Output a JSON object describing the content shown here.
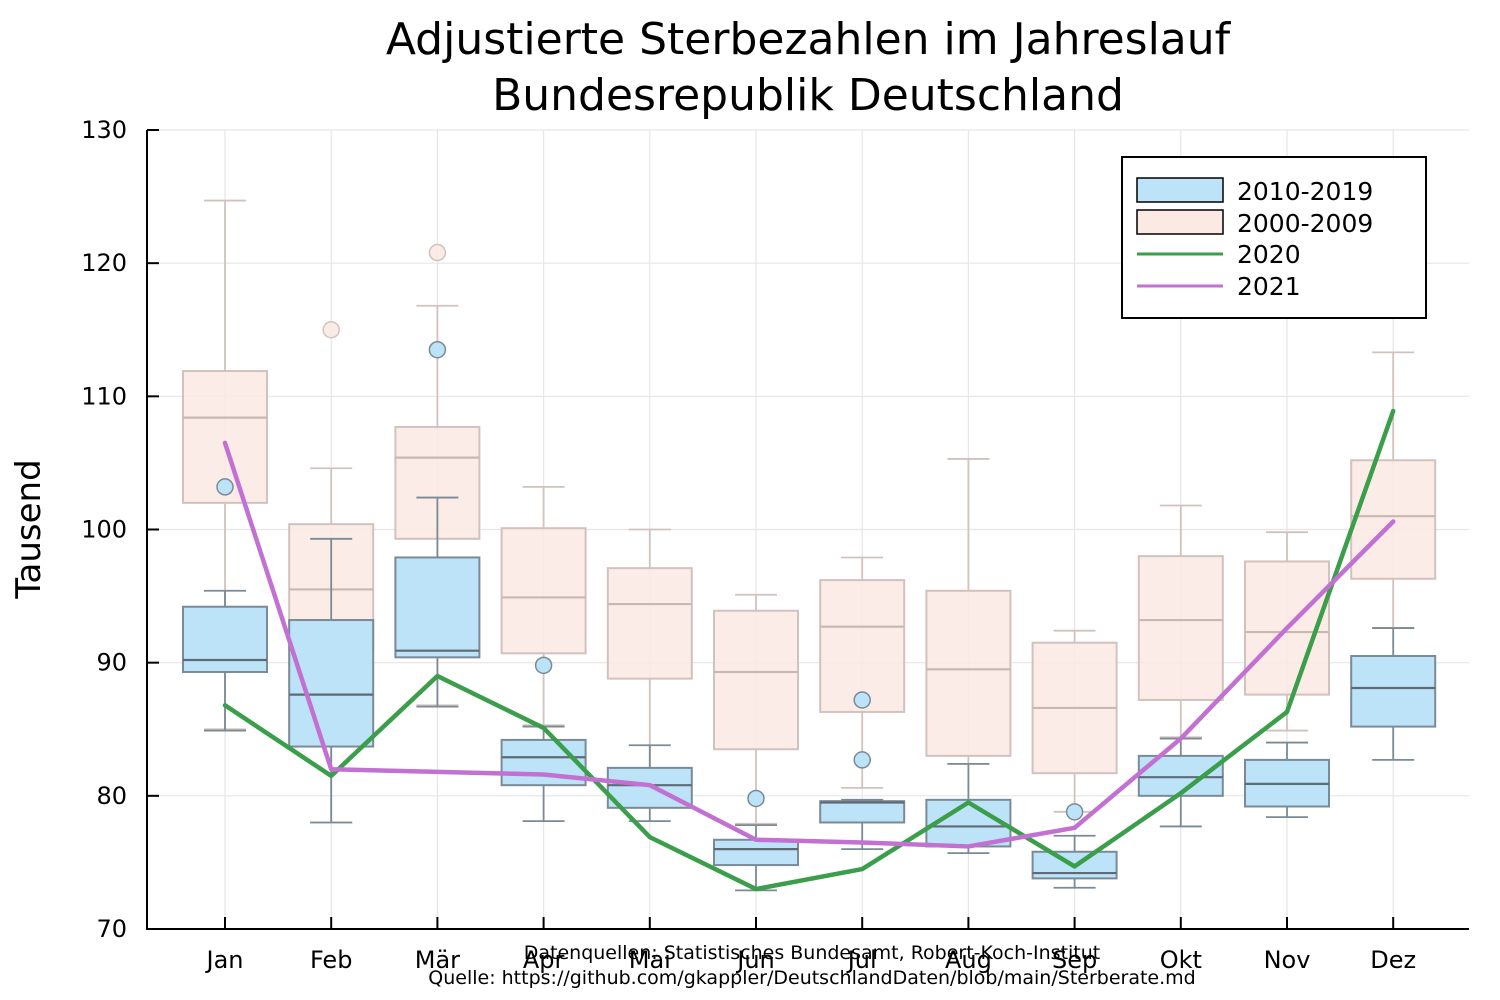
{
  "chart_data": {
    "type": "box+line",
    "title": "Adjustierte Sterbezahlen im Jahreslauf",
    "subtitle": "Bundesrepublik Deutschland",
    "ylabel": "Tausend",
    "xlabel": "",
    "ylim": [
      70,
      130
    ],
    "yticks": [
      "70",
      "80",
      "90",
      "100",
      "110",
      "120",
      "130"
    ],
    "categories": [
      "Jan",
      "Feb",
      "Mär",
      "Apr",
      "Mai",
      "Jun",
      "Jul",
      "Aug",
      "Sep",
      "Okt",
      "Nov",
      "Dez"
    ],
    "grid": true,
    "legend_position": "top-right",
    "box_series": [
      {
        "name": "2000-2009",
        "color": "#fbe9e3",
        "boxes": [
          {
            "low": 85.0,
            "q1": 102.0,
            "median": 108.4,
            "q3": 111.9,
            "high": 124.7,
            "outliers": []
          },
          {
            "low": 78.0,
            "q1": 91.0,
            "median": 95.5,
            "q3": 100.4,
            "high": 104.6,
            "outliers": [
              115.0
            ]
          },
          {
            "low": 86.8,
            "q1": 99.3,
            "median": 105.4,
            "q3": 107.7,
            "high": 116.8,
            "outliers": [
              120.8
            ]
          },
          {
            "low": 85.3,
            "q1": 90.7,
            "median": 94.9,
            "q3": 100.1,
            "high": 103.2,
            "outliers": []
          },
          {
            "low": 81.5,
            "q1": 88.8,
            "median": 94.4,
            "q3": 97.1,
            "high": 100.0,
            "outliers": []
          },
          {
            "low": 77.9,
            "q1": 83.5,
            "median": 89.3,
            "q3": 93.9,
            "high": 95.1,
            "outliers": []
          },
          {
            "low": 80.6,
            "q1": 86.3,
            "median": 92.7,
            "q3": 96.2,
            "high": 97.9,
            "outliers": []
          },
          {
            "low": 82.4,
            "q1": 83.0,
            "median": 89.5,
            "q3": 95.4,
            "high": 105.3,
            "outliers": []
          },
          {
            "low": 78.8,
            "q1": 81.7,
            "median": 86.6,
            "q3": 91.5,
            "high": 92.4,
            "outliers": []
          },
          {
            "low": 84.4,
            "q1": 87.2,
            "median": 93.2,
            "q3": 98.0,
            "high": 101.8,
            "outliers": []
          },
          {
            "low": 84.9,
            "q1": 87.6,
            "median": 92.3,
            "q3": 97.6,
            "high": 99.8,
            "outliers": []
          },
          {
            "low": 92.6,
            "q1": 96.3,
            "median": 101.0,
            "q3": 105.2,
            "high": 113.3,
            "outliers": []
          }
        ]
      },
      {
        "name": "2010-2019",
        "color": "#bde3f9",
        "boxes": [
          {
            "low": 84.9,
            "q1": 89.3,
            "median": 90.2,
            "q3": 94.2,
            "high": 95.4,
            "outliers": [
              103.2
            ]
          },
          {
            "low": 78.0,
            "q1": 83.7,
            "median": 87.6,
            "q3": 93.2,
            "high": 99.3,
            "outliers": []
          },
          {
            "low": 86.7,
            "q1": 90.4,
            "median": 90.9,
            "q3": 97.9,
            "high": 102.4,
            "outliers": [
              113.5
            ]
          },
          {
            "low": 78.1,
            "q1": 80.8,
            "median": 82.9,
            "q3": 84.2,
            "high": 85.2,
            "outliers": [
              89.8
            ]
          },
          {
            "low": 78.1,
            "q1": 79.1,
            "median": 80.8,
            "q3": 82.1,
            "high": 83.8,
            "outliers": []
          },
          {
            "low": 72.9,
            "q1": 74.8,
            "median": 76.0,
            "q3": 76.7,
            "high": 77.8,
            "outliers": [
              79.8
            ]
          },
          {
            "low": 76.0,
            "q1": 78.0,
            "median": 79.5,
            "q3": 79.6,
            "high": 79.7,
            "outliers": [
              82.7,
              87.2
            ]
          },
          {
            "low": 75.7,
            "q1": 76.2,
            "median": 77.7,
            "q3": 79.7,
            "high": 82.4,
            "outliers": []
          },
          {
            "low": 73.1,
            "q1": 73.8,
            "median": 74.2,
            "q3": 75.8,
            "high": 77.0,
            "outliers": [
              78.8
            ]
          },
          {
            "low": 77.7,
            "q1": 80.0,
            "median": 81.4,
            "q3": 83.0,
            "high": 84.3,
            "outliers": []
          },
          {
            "low": 78.4,
            "q1": 79.2,
            "median": 80.9,
            "q3": 82.7,
            "high": 84.0,
            "outliers": []
          },
          {
            "low": 82.7,
            "q1": 85.2,
            "median": 88.1,
            "q3": 90.5,
            "high": 92.6,
            "outliers": []
          }
        ]
      }
    ],
    "line_series": [
      {
        "name": "2020",
        "color": "#3a9e4a",
        "values": [
          86.8,
          81.5,
          89.0,
          85.1,
          76.9,
          73.0,
          74.5,
          79.5,
          74.7,
          80.2,
          86.3,
          108.9
        ]
      },
      {
        "name": "2021",
        "color": "#c271d2",
        "values": [
          106.5,
          82.0,
          81.8,
          81.6,
          80.8,
          76.7,
          76.5,
          76.2,
          77.6,
          84.3,
          92.6,
          100.6
        ]
      }
    ],
    "source_lines": [
      "Datenquellen: Statistisches Bundesamt, Robert-Koch-Institut",
      "Quelle: https://github.com/gkappler/DeutschlandDaten/blob/main/Sterberate.md"
    ]
  }
}
